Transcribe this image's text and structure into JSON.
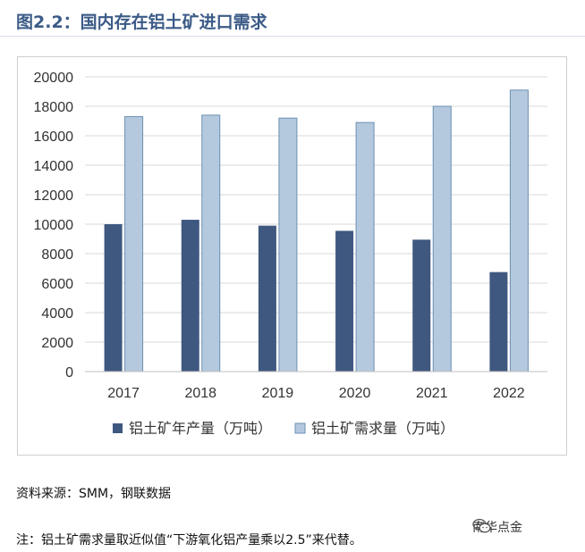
{
  "figure": {
    "title": "图2.2：国内存在铝土矿进口需求"
  },
  "chart_data": {
    "type": "bar",
    "categories": [
      "2017",
      "2018",
      "2019",
      "2020",
      "2021",
      "2022"
    ],
    "series": [
      {
        "name": "铝土矿年产量（万吨）",
        "values": [
          10000,
          10300,
          9900,
          9550,
          8950,
          6750
        ],
        "color": "#3f5880"
      },
      {
        "name": "铝土矿需求量（万吨）",
        "values": [
          17300,
          17400,
          17200,
          16900,
          18000,
          19100
        ],
        "color": "#b4c9de"
      }
    ],
    "ylim": [
      0,
      20000
    ],
    "yticks": [
      0,
      2000,
      4000,
      6000,
      8000,
      10000,
      12000,
      14000,
      16000,
      18000,
      20000
    ],
    "grid": true,
    "legend_position": "bottom"
  },
  "notes": {
    "source": "资料来源：SMM，钢联数据",
    "remark": "注：铝土矿需求量取近似值“下游氧化铝产量乘以2.5”来代替。"
  },
  "watermark": {
    "text": "南华点金",
    "icon": "wechat-icon"
  }
}
